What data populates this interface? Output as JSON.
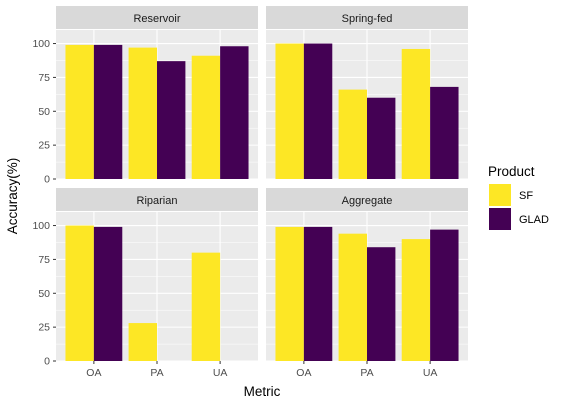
{
  "chart_data": {
    "type": "bar",
    "categories": [
      "OA",
      "PA",
      "UA"
    ],
    "xlabel": "Metric",
    "ylabel": "Accuracy(%)",
    "ylim": [
      0,
      110
    ],
    "yticks": [
      0,
      25,
      50,
      75,
      100
    ],
    "grid": true,
    "legend": {
      "title": "Product",
      "position": "right",
      "entries": [
        {
          "name": "SF",
          "color": "#FDE725"
        },
        {
          "name": "GLAD",
          "color": "#440154"
        }
      ]
    },
    "panels": [
      {
        "title": "Reservoir",
        "series": [
          {
            "name": "SF",
            "values": [
              99,
              97,
              91
            ]
          },
          {
            "name": "GLAD",
            "values": [
              99,
              87,
              98
            ]
          }
        ]
      },
      {
        "title": "Spring-fed",
        "series": [
          {
            "name": "SF",
            "values": [
              100,
              66,
              96
            ]
          },
          {
            "name": "GLAD",
            "values": [
              100,
              60,
              68
            ]
          }
        ]
      },
      {
        "title": "Riparian",
        "series": [
          {
            "name": "SF",
            "values": [
              100,
              28,
              80
            ]
          },
          {
            "name": "GLAD",
            "values": [
              99,
              0,
              0
            ]
          }
        ]
      },
      {
        "title": "Aggregate",
        "series": [
          {
            "name": "SF",
            "values": [
              99,
              94,
              90
            ]
          },
          {
            "name": "GLAD",
            "values": [
              99,
              84,
              97
            ]
          }
        ]
      }
    ]
  },
  "colors": {
    "panel_bg": "#EBEBEB",
    "strip_bg": "#D9D9D9",
    "grid_major": "#FFFFFF",
    "axis_text": "#4D4D4D",
    "title_text": "#1A1A1A"
  }
}
